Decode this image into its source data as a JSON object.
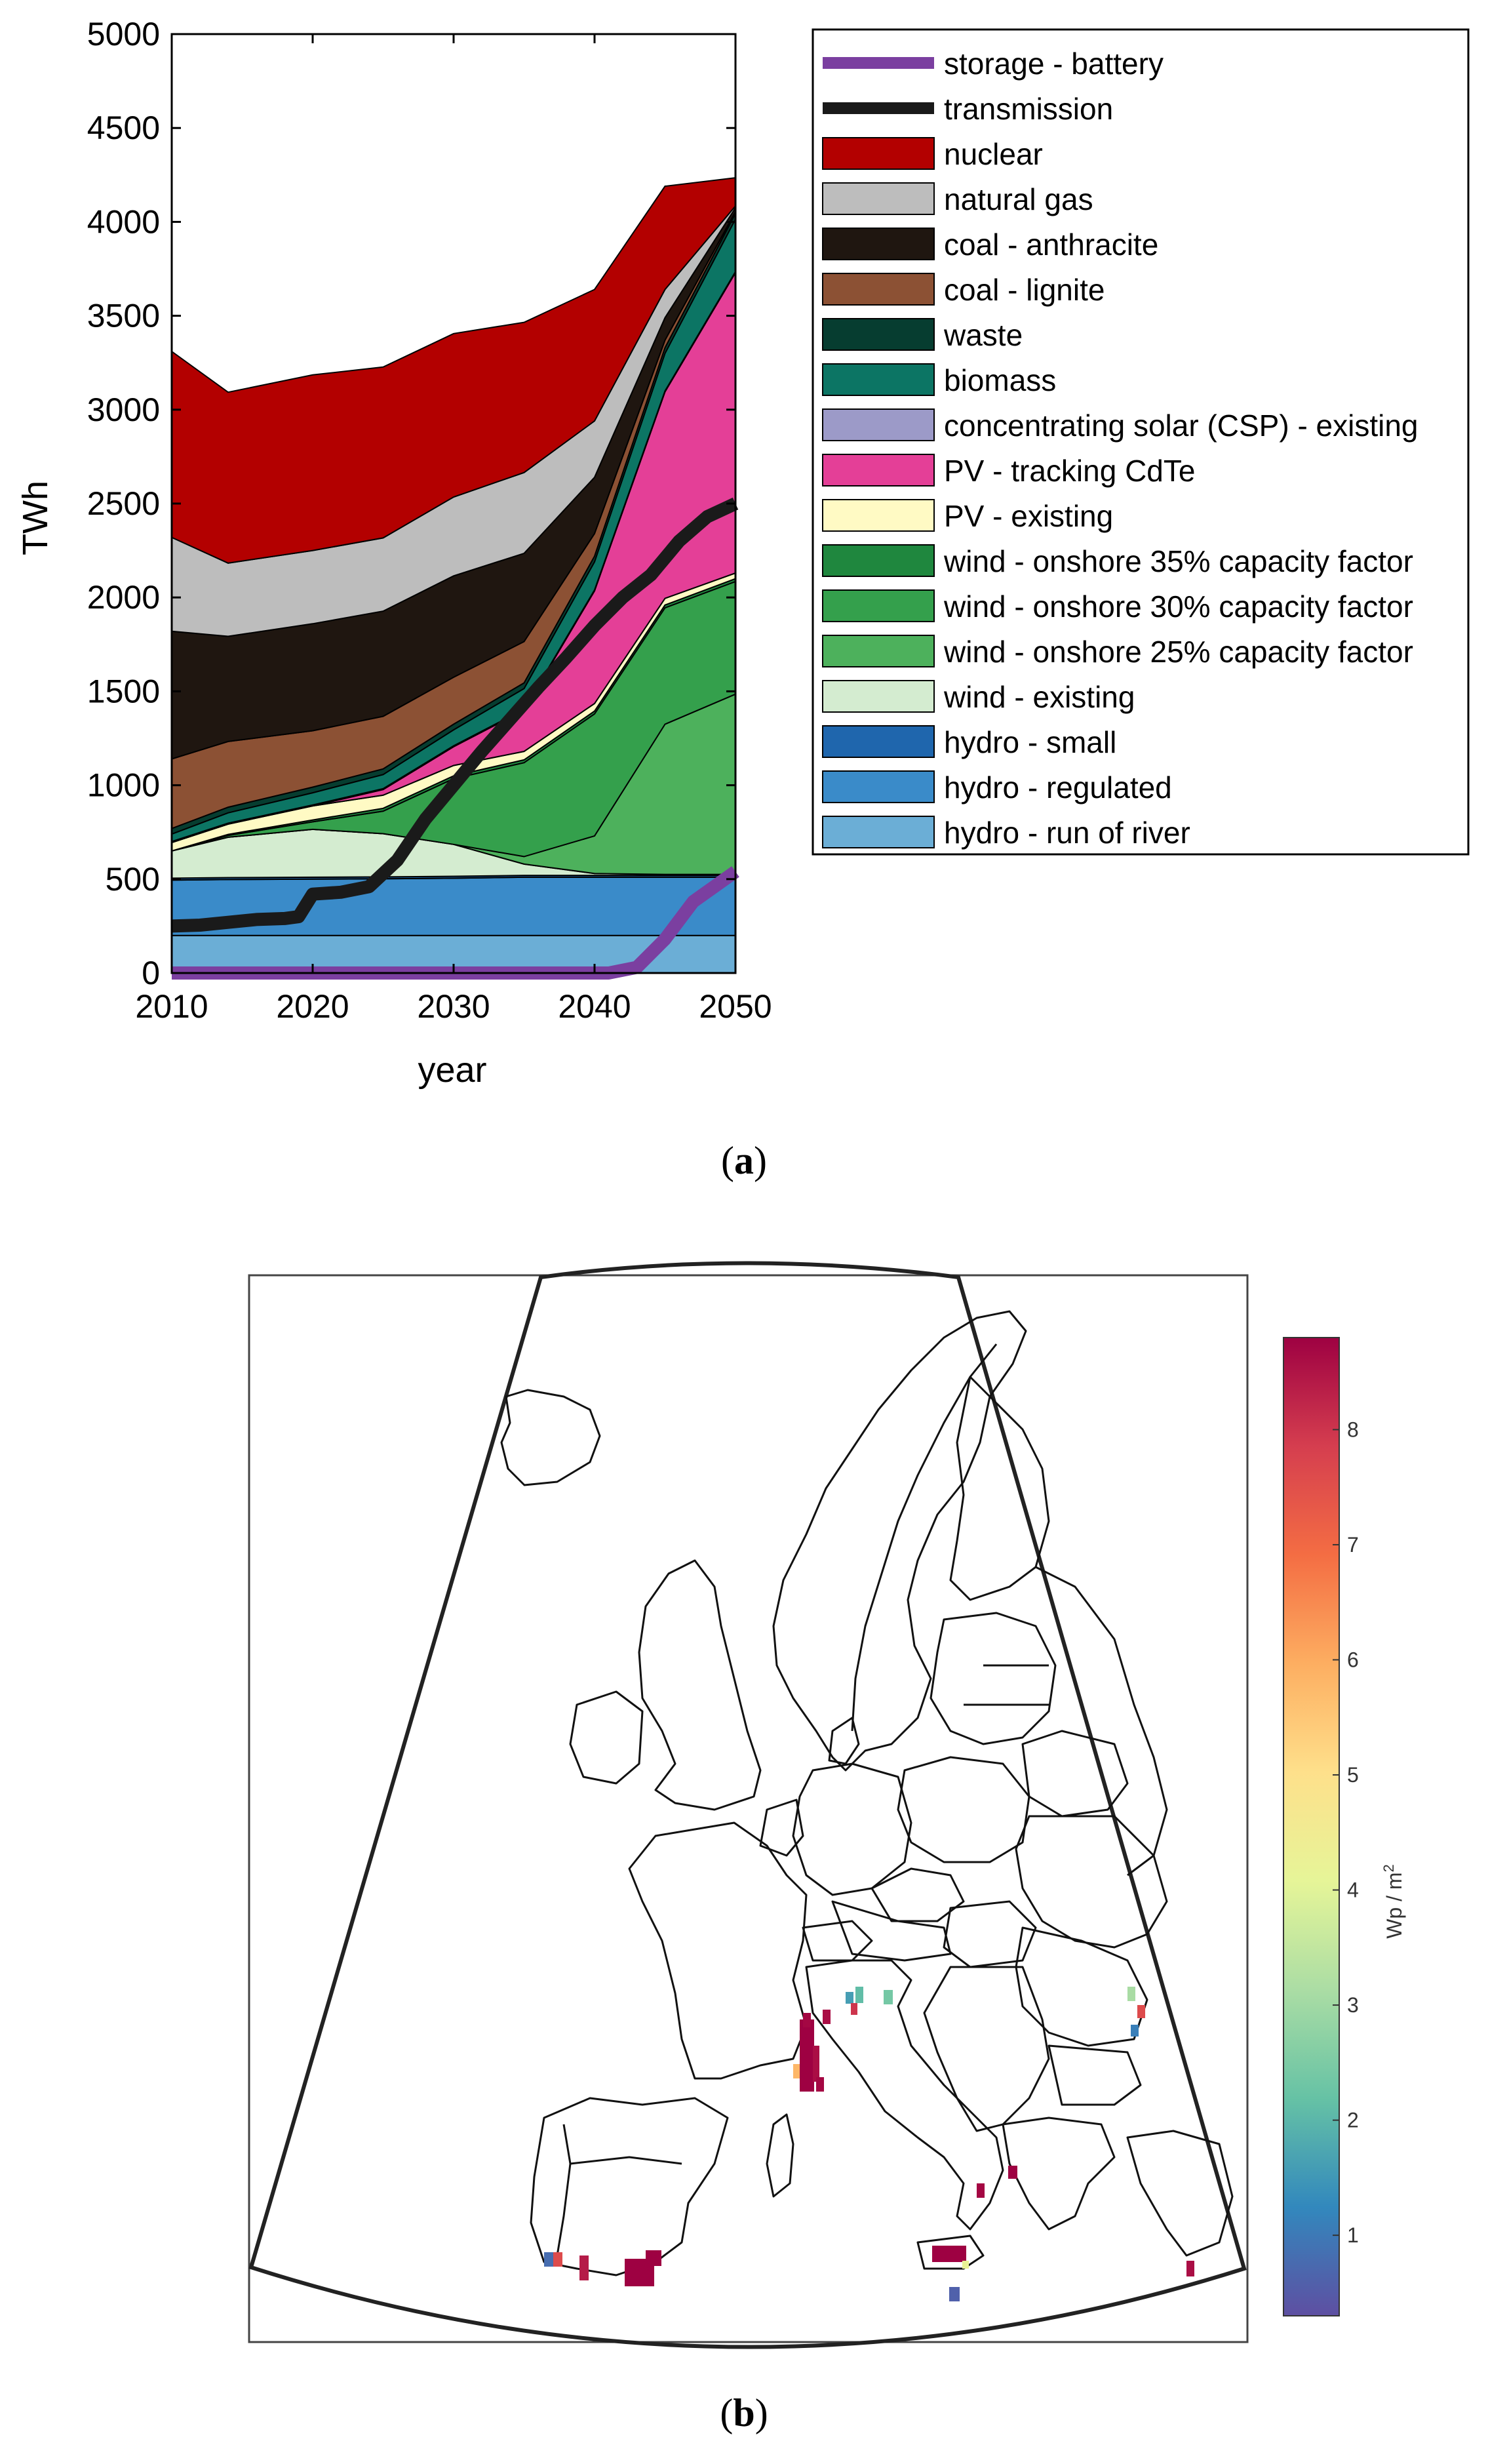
{
  "chart_data": [
    {
      "type": "area",
      "panel_label": "a",
      "xlabel": "year",
      "ylabel": "TWh",
      "xlim": [
        2010,
        2050
      ],
      "ylim": [
        0,
        5000
      ],
      "x_ticks": [
        "2010",
        "2020",
        "2030",
        "2040",
        "2050"
      ],
      "y_ticks": [
        "0",
        "500",
        "1000",
        "1500",
        "2000",
        "2500",
        "3000",
        "3500",
        "4000",
        "4500",
        "5000"
      ],
      "x": [
        2010,
        2014,
        2020,
        2025,
        2030,
        2035,
        2040,
        2045,
        2050
      ],
      "stack_order_bottom_to_top": [
        "hydro - run of river",
        "hydro - regulated",
        "hydro - small",
        "wind - existing",
        "wind - onshore 25% capacity factor",
        "wind - onshore 30% capacity factor",
        "wind - onshore 35% capacity factor",
        "PV - existing",
        "PV - tracking CdTe",
        "concentrating solar (CSP) - existing",
        "biomass",
        "waste",
        "coal - lignite",
        "coal - anthracite",
        "natural gas",
        "nuclear"
      ],
      "series": [
        {
          "name": "hydro - run of river",
          "color": "#6baed6",
          "values": [
            200,
            200,
            200,
            200,
            200,
            200,
            200,
            200,
            200
          ]
        },
        {
          "name": "hydro - regulated",
          "color": "#3a8bc9",
          "values": [
            295,
            298,
            300,
            302,
            305,
            310,
            310,
            310,
            310
          ]
        },
        {
          "name": "hydro - small",
          "color": "#1f66ad",
          "values": [
            10,
            10,
            10,
            10,
            10,
            10,
            10,
            10,
            10
          ]
        },
        {
          "name": "wind - existing",
          "color": "#d4ecd0",
          "values": [
            145,
            215,
            255,
            230,
            170,
            60,
            10,
            5,
            5
          ]
        },
        {
          "name": "wind - onshore 25% capacity factor",
          "color": "#4db15c",
          "values": [
            0,
            0,
            0,
            0,
            0,
            40,
            200,
            800,
            960
          ]
        },
        {
          "name": "wind - onshore 30% capacity factor",
          "color": "#34a04c",
          "values": [
            0,
            10,
            40,
            120,
            350,
            500,
            650,
            620,
            600
          ]
        },
        {
          "name": "wind - onshore 35% capacity factor",
          "color": "#1f873e",
          "values": [
            0,
            5,
            10,
            15,
            15,
            15,
            15,
            15,
            15
          ]
        },
        {
          "name": "PV - existing",
          "color": "#fffac4",
          "values": [
            45,
            55,
            75,
            70,
            55,
            45,
            40,
            35,
            30
          ]
        },
        {
          "name": "PV - tracking CdTe",
          "color": "#e43f97",
          "values": [
            0,
            0,
            0,
            30,
            100,
            220,
            600,
            1100,
            1600
          ]
        },
        {
          "name": "concentrating solar (CSP) - existing",
          "color": "#9c9ac8",
          "values": [
            5,
            5,
            5,
            5,
            5,
            5,
            5,
            5,
            5
          ]
        },
        {
          "name": "biomass",
          "color": "#0c7564",
          "values": [
            40,
            55,
            65,
            75,
            85,
            110,
            150,
            200,
            280
          ]
        },
        {
          "name": "waste",
          "color": "#063d30",
          "values": [
            30,
            30,
            30,
            30,
            30,
            30,
            30,
            30,
            30
          ]
        },
        {
          "name": "coal - lignite",
          "color": "#8c5134",
          "values": [
            370,
            350,
            300,
            280,
            250,
            220,
            120,
            40,
            10
          ]
        },
        {
          "name": "coal - anthracite",
          "color": "#1f1610",
          "values": [
            680,
            560,
            570,
            560,
            540,
            470,
            300,
            120,
            20
          ]
        },
        {
          "name": "natural gas",
          "color": "#bdbdbd",
          "values": [
            500,
            390,
            390,
            390,
            420,
            430,
            300,
            150,
            10
          ]
        },
        {
          "name": "nuclear",
          "color": "#b30000",
          "values": [
            990,
            910,
            935,
            910,
            870,
            800,
            700,
            550,
            150
          ]
        }
      ],
      "line_series": [
        {
          "name": "transmission",
          "color": "#1a1a1a",
          "x": [
            2010,
            2012,
            2014,
            2016,
            2018,
            2019,
            2020,
            2022,
            2024,
            2026,
            2028,
            2030,
            2032,
            2034,
            2036,
            2038,
            2040,
            2042,
            2044,
            2046,
            2048,
            2050
          ],
          "values": [
            250,
            255,
            270,
            285,
            290,
            300,
            420,
            430,
            460,
            600,
            820,
            1000,
            1180,
            1350,
            1520,
            1680,
            1850,
            2000,
            2120,
            2300,
            2430,
            2500
          ]
        },
        {
          "name": "storage - battery",
          "color": "#7b3fa0",
          "x": [
            2010,
            2041,
            2043,
            2045,
            2047,
            2050
          ],
          "values": [
            0,
            0,
            30,
            180,
            380,
            540
          ]
        }
      ],
      "legend_order": [
        "storage - battery",
        "transmission",
        "nuclear",
        "natural gas",
        "coal - anthracite",
        "coal - lignite",
        "waste",
        "biomass",
        "concentrating solar (CSP) - existing",
        "PV - tracking CdTe",
        "PV - existing",
        "wind - onshore 35% capacity factor",
        "wind - onshore 30% capacity factor",
        "wind - onshore 25% capacity factor",
        "wind - existing",
        "hydro - small",
        "hydro - regulated",
        "hydro - run of river"
      ],
      "legend_position": "right"
    },
    {
      "type": "heatmap",
      "panel_label": "b",
      "colorbar_label": "Wp / m",
      "colorbar_label_sup": "2",
      "colorbar_range": [
        0.3,
        8.8
      ],
      "colorbar_ticks": [
        "1",
        "2",
        "3",
        "4",
        "5",
        "6",
        "7",
        "8"
      ],
      "colormap_stops": [
        "#5e4fa2",
        "#3288bd",
        "#66c2a5",
        "#abdda4",
        "#e6f598",
        "#fee08b",
        "#fdae61",
        "#f46d43",
        "#d53e4f",
        "#9e0142"
      ],
      "cells": [
        {
          "region": "Portugal south coast",
          "value": 0.8
        },
        {
          "region": "Portugal south coast",
          "value": 7.6
        },
        {
          "region": "Spain Andalusia",
          "value": 8.4
        },
        {
          "region": "Spain Andalusia",
          "value": 8.8
        },
        {
          "region": "Spain Andalusia",
          "value": 8.8
        },
        {
          "region": "France Rhone valley",
          "value": 8.8
        },
        {
          "region": "France Rhone valley",
          "value": 8.6
        },
        {
          "region": "France Rhone valley",
          "value": 5.8
        },
        {
          "region": "France Rhone valley",
          "value": 8.7
        },
        {
          "region": "Switzerland / Alps",
          "value": 8.7
        },
        {
          "region": "Switzerland / Alps",
          "value": 8.6
        },
        {
          "region": "Switzerland / Alps",
          "value": 1.6
        },
        {
          "region": "Switzerland / Alps",
          "value": 2.1
        },
        {
          "region": "Switzerland / Alps",
          "value": 2.4
        },
        {
          "region": "Switzerland / Alps",
          "value": 8.0
        },
        {
          "region": "Romania / Moldova",
          "value": 3.1
        },
        {
          "region": "Romania / Moldova",
          "value": 7.6
        },
        {
          "region": "Romania / Moldova",
          "value": 1.1
        },
        {
          "region": "Italy Calabria",
          "value": 8.8
        },
        {
          "region": "Italy Calabria",
          "value": 8.7
        },
        {
          "region": "Italy Sicily",
          "value": 8.8
        },
        {
          "region": "Italy Sicily",
          "value": 4.2
        },
        {
          "region": "Italy Sicily",
          "value": 0.6
        },
        {
          "region": "Turkey / Aegean",
          "value": 8.6
        }
      ]
    }
  ]
}
